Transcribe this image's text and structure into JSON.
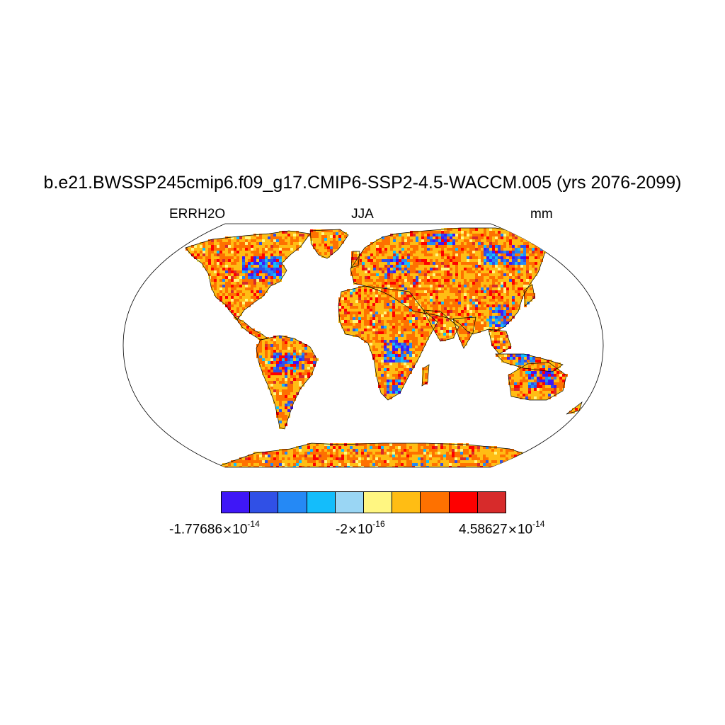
{
  "title": "b.e21.BWSSP245cmip6.f09_g17.CMIP6-SSP2-4.5-WACCM.005 (yrs 2076-2099)",
  "left_string": "ERRH2O",
  "center_string": "JJA",
  "right_string": "mm",
  "map": {
    "projection": "Robinson",
    "field": "ERRH2O",
    "land_dominant_colors": [
      "#ffc022",
      "#ff7100",
      "#ff0000"
    ],
    "wet_anomaly_regions": [
      "northern North America",
      "eastern United States",
      "Amazon basin",
      "central Africa",
      "Scandinavia and Siberia",
      "East Asia",
      "northern Australia"
    ]
  },
  "colorbar": {
    "colors": [
      "#3f17f7",
      "#3050e6",
      "#2589f5",
      "#14bdfb",
      "#9ad6f4",
      "#fff681",
      "#ffbd14",
      "#fe7100",
      "#fe0000",
      "#d72b2b"
    ],
    "labels": [
      {
        "mantissa": "-1.77686",
        "times": "×",
        "base": "10",
        "exp": "-14"
      },
      {
        "mantissa": "-2",
        "times": "×",
        "base": "10",
        "exp": "-16"
      },
      {
        "mantissa": "4.58627",
        "times": "×",
        "base": "10",
        "exp": "-14"
      }
    ]
  }
}
